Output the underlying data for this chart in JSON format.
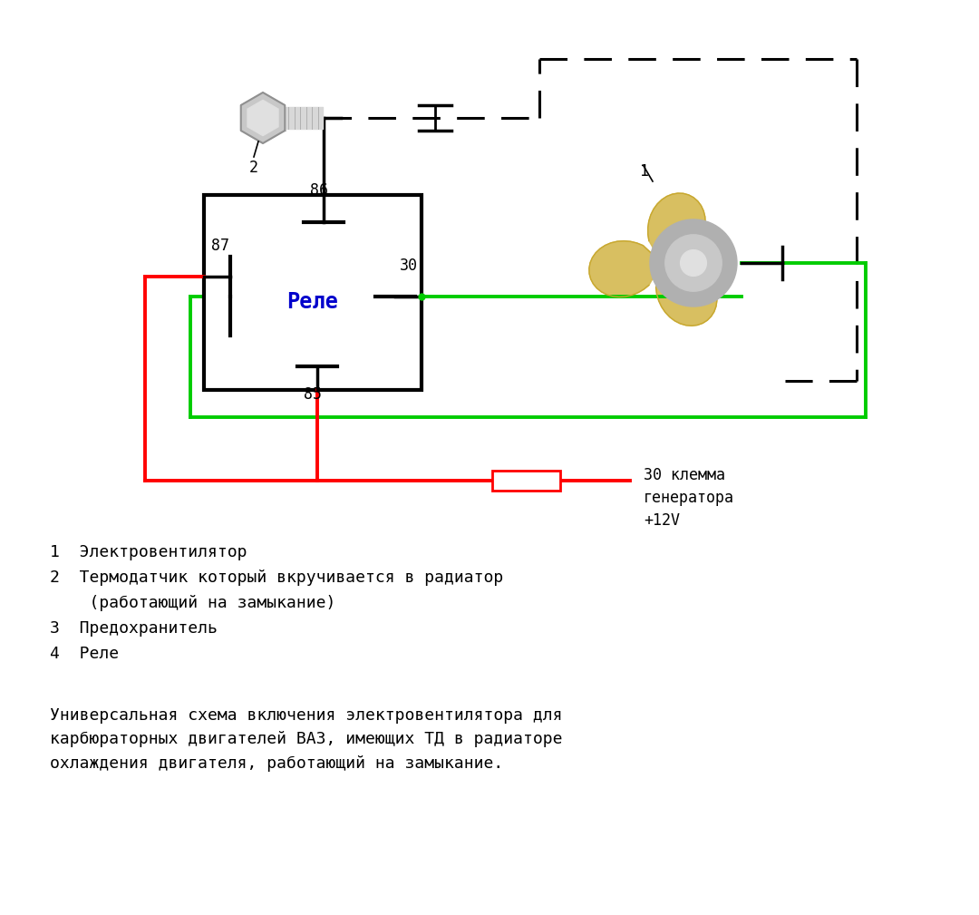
{
  "bg_color": "#ffffff",
  "relay_label": "Реле",
  "relay_color": "#0000cc",
  "dashed_color": "#000000",
  "red_color": "#ff0000",
  "green_color": "#00cc00",
  "black_color": "#000000",
  "note_30_klema": "30 клемма\nгенератора\n+12V",
  "legend_line1": "1  Электровентилятор",
  "legend_line2": "2  Термодатчик который вкручивается в радиатор",
  "legend_line3": "    (работающий на замыкание)",
  "legend_line4": "3  Предохранитель",
  "legend_line5": "4  Реле",
  "bottom_text": "Универсальная схема включения электровентилятора для\nкарбюраторных двигателей ВАЗ, имеющих ТД в радиаторе\nохлаждения двигателя, работающий на замыкание.",
  "font_size_labels": 12,
  "font_size_legend": 13,
  "font_size_bottom": 13,
  "lw_main": 2.5,
  "lw_wire": 2.8,
  "lw_dashed": 2.2,
  "lw_relay": 3.0
}
